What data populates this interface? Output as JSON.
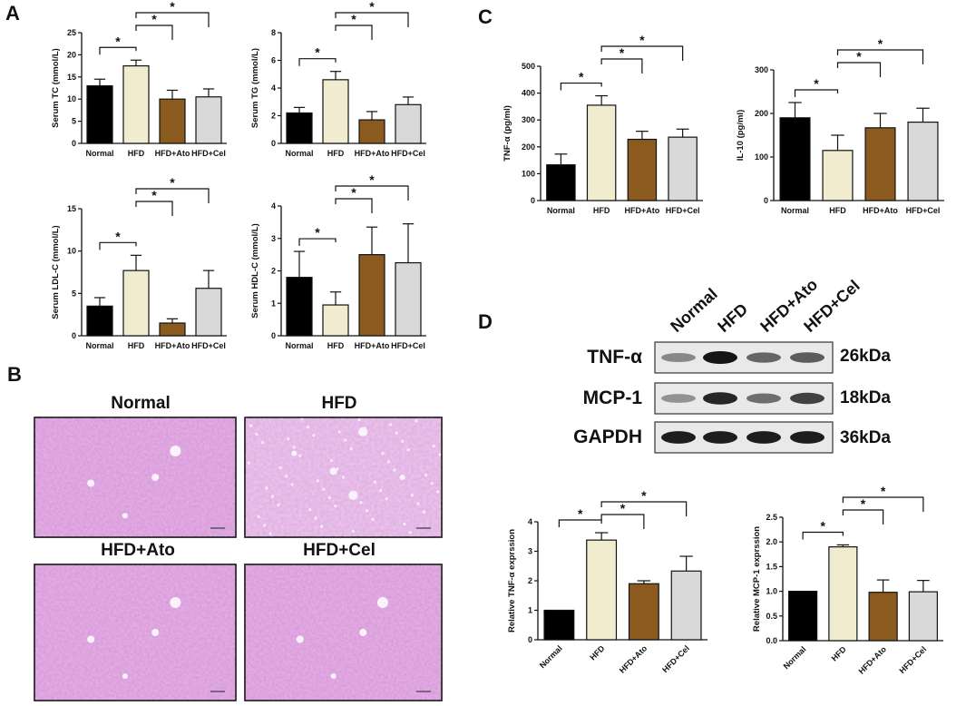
{
  "panels": {
    "A": "A",
    "B": "B",
    "C": "C",
    "D": "D"
  },
  "histology": {
    "images": [
      {
        "title": "Normal",
        "variant": "normal"
      },
      {
        "title": "HFD",
        "variant": "hfd"
      },
      {
        "title": "HFD+Ato",
        "variant": "normal"
      },
      {
        "title": "HFD+Cel",
        "variant": "normal"
      }
    ]
  },
  "western_blot": {
    "lanes": [
      "Normal",
      "HFD",
      "HFD+Ato",
      "HFD+Cel"
    ],
    "rows": [
      {
        "protein": "TNF-α",
        "kda": "26kDa",
        "intensity": [
          0.35,
          1.0,
          0.55,
          0.6
        ]
      },
      {
        "protein": "MCP-1",
        "kda": "18kDa",
        "intensity": [
          0.3,
          0.9,
          0.5,
          0.75
        ]
      },
      {
        "protein": "GAPDH",
        "kda": "36kDa",
        "intensity": [
          0.95,
          0.95,
          0.95,
          0.95
        ]
      }
    ]
  },
  "colors": {
    "Normal": "#000000",
    "HFD": "#f1ecd0",
    "HFD+Ato": "#8b5a1e",
    "HFD+Cel": "#d9d9d9"
  },
  "chart_data": [
    {
      "id": "tc",
      "type": "bar",
      "categories": [
        "Normal",
        "HFD",
        "HFD+Ato",
        "HFD+Cel"
      ],
      "values": [
        13,
        17.5,
        10,
        10.5
      ],
      "errors": [
        1.5,
        1.3,
        2,
        1.8
      ],
      "ylabel": "Serum TC (mmol/L)",
      "ylim": [
        0,
        25
      ],
      "yticks": [
        0,
        5,
        10,
        15,
        20,
        25
      ],
      "significance": [
        [
          0,
          1
        ],
        [
          1,
          2
        ],
        [
          1,
          3
        ]
      ],
      "tick_rotate": false
    },
    {
      "id": "tg",
      "type": "bar",
      "categories": [
        "Normal",
        "HFD",
        "HFD+Ato",
        "HFD+Cel"
      ],
      "values": [
        2.2,
        4.6,
        1.7,
        2.8
      ],
      "errors": [
        0.4,
        0.6,
        0.6,
        0.55
      ],
      "ylabel": "Serum TG (mmol/L)",
      "ylim": [
        0,
        8
      ],
      "yticks": [
        0,
        2,
        4,
        6,
        8
      ],
      "significance": [
        [
          0,
          1
        ],
        [
          1,
          2
        ],
        [
          1,
          3
        ]
      ],
      "tick_rotate": false
    },
    {
      "id": "ldl",
      "type": "bar",
      "categories": [
        "Normal",
        "HFD",
        "HFD+Ato",
        "HFD+Cel"
      ],
      "values": [
        3.5,
        7.7,
        1.5,
        5.6
      ],
      "errors": [
        1.0,
        1.8,
        0.5,
        2.1
      ],
      "ylabel": "Serum LDL-C (mmol/L)",
      "ylim": [
        0,
        15
      ],
      "yticks": [
        0,
        5,
        10,
        15
      ],
      "significance": [
        [
          0,
          1
        ],
        [
          1,
          2
        ],
        [
          1,
          3
        ]
      ],
      "tick_rotate": false
    },
    {
      "id": "hdl",
      "type": "bar",
      "categories": [
        "Normal",
        "HFD",
        "HFD+Ato",
        "HFD+Cel"
      ],
      "values": [
        1.8,
        0.95,
        2.5,
        2.25
      ],
      "errors": [
        0.8,
        0.4,
        0.85,
        1.2
      ],
      "ylabel": "Serum HDL-C (mmol/L)",
      "ylim": [
        0,
        4
      ],
      "yticks": [
        0,
        1,
        2,
        3,
        4
      ],
      "significance": [
        [
          0,
          1
        ],
        [
          1,
          2
        ],
        [
          1,
          3
        ]
      ],
      "tick_rotate": false
    },
    {
      "id": "tnf",
      "type": "bar",
      "categories": [
        "Normal",
        "HFD",
        "HFD+Ato",
        "HFD+Cel"
      ],
      "values": [
        133,
        355,
        228,
        236
      ],
      "errors": [
        40,
        35,
        30,
        30
      ],
      "ylabel": "TNF-α (pg/ml)",
      "ylim": [
        0,
        500
      ],
      "yticks": [
        0,
        100,
        200,
        300,
        400,
        500
      ],
      "significance": [
        [
          0,
          1
        ],
        [
          1,
          2
        ],
        [
          1,
          3
        ]
      ],
      "tick_rotate": false
    },
    {
      "id": "il10",
      "type": "bar",
      "categories": [
        "Normal",
        "HFD",
        "HFD+Ato",
        "HFD+Cel"
      ],
      "values": [
        190,
        115,
        167,
        180
      ],
      "errors": [
        35,
        35,
        33,
        32
      ],
      "ylabel": "IL-10 (pg/ml)",
      "ylim": [
        0,
        300
      ],
      "yticks": [
        0,
        100,
        200,
        300
      ],
      "significance": [
        [
          0,
          1
        ],
        [
          1,
          2
        ],
        [
          1,
          3
        ]
      ],
      "tick_rotate": false
    },
    {
      "id": "rel_tnf",
      "type": "bar",
      "categories": [
        "Normal",
        "HFD",
        "HFD+Ato",
        "HFD+Cel"
      ],
      "values": [
        1.0,
        3.38,
        1.9,
        2.33
      ],
      "errors": [
        0,
        0.25,
        0.1,
        0.5
      ],
      "ylabel": "Relative TNF-α exprssion",
      "ylim": [
        0,
        4
      ],
      "yticks": [
        0,
        1,
        2,
        3,
        4
      ],
      "significance": [
        [
          0,
          1
        ],
        [
          1,
          2
        ],
        [
          1,
          3
        ]
      ],
      "tick_rotate": true
    },
    {
      "id": "rel_mcp",
      "type": "bar",
      "categories": [
        "Normal",
        "HFD",
        "HFD+Ato",
        "HFD+Cel"
      ],
      "values": [
        1.0,
        1.9,
        0.98,
        0.99
      ],
      "errors": [
        0,
        0.04,
        0.25,
        0.23
      ],
      "ylabel": "Relative MCP-1 exprssion",
      "ylim": [
        0,
        2.5
      ],
      "yticks": [
        0.0,
        0.5,
        1.0,
        1.5,
        2.0,
        2.5
      ],
      "tick_format": 1,
      "significance": [
        [
          0,
          1
        ],
        [
          1,
          2
        ],
        [
          1,
          3
        ]
      ],
      "tick_rotate": true
    }
  ]
}
